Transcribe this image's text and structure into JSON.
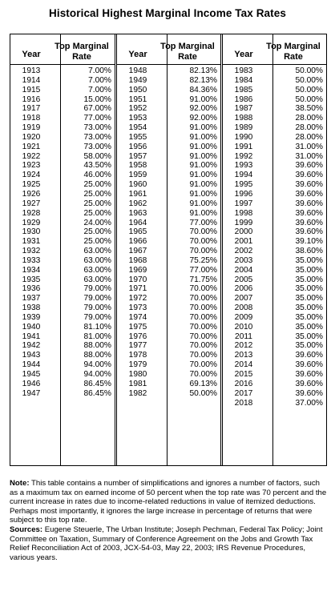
{
  "title": "Historical Highest Marginal Income Tax Rates",
  "table": {
    "col_year": "Year",
    "col_rate": "Top Marginal Rate",
    "panels": [
      {
        "rows": [
          [
            "1913",
            "7.00%"
          ],
          [
            "1914",
            "7.00%"
          ],
          [
            "1915",
            "7.00%"
          ],
          [
            "1916",
            "15.00%"
          ],
          [
            "1917",
            "67.00%"
          ],
          [
            "1918",
            "77.00%"
          ],
          [
            "1919",
            "73.00%"
          ],
          [
            "1920",
            "73.00%"
          ],
          [
            "1921",
            "73.00%"
          ],
          [
            "1922",
            "58.00%"
          ],
          [
            "1923",
            "43.50%"
          ],
          [
            "1924",
            "46.00%"
          ],
          [
            "1925",
            "25.00%"
          ],
          [
            "1926",
            "25.00%"
          ],
          [
            "1927",
            "25.00%"
          ],
          [
            "1928",
            "25.00%"
          ],
          [
            "1929",
            "24.00%"
          ],
          [
            "1930",
            "25.00%"
          ],
          [
            "1931",
            "25.00%"
          ],
          [
            "1932",
            "63.00%"
          ],
          [
            "1933",
            "63.00%"
          ],
          [
            "1934",
            "63.00%"
          ],
          [
            "1935",
            "63.00%"
          ],
          [
            "1936",
            "79.00%"
          ],
          [
            "1937",
            "79.00%"
          ],
          [
            "1938",
            "79.00%"
          ],
          [
            "1939",
            "79.00%"
          ],
          [
            "1940",
            "81.10%"
          ],
          [
            "1941",
            "81.00%"
          ],
          [
            "1942",
            "88.00%"
          ],
          [
            "1943",
            "88.00%"
          ],
          [
            "1944",
            "94.00%"
          ],
          [
            "1945",
            "94.00%"
          ],
          [
            "1946",
            "86.45%"
          ],
          [
            "1947",
            "86.45%"
          ]
        ]
      },
      {
        "rows": [
          [
            "1948",
            "82.13%"
          ],
          [
            "1949",
            "82.13%"
          ],
          [
            "1950",
            "84.36%"
          ],
          [
            "1951",
            "91.00%"
          ],
          [
            "1952",
            "92.00%"
          ],
          [
            "1953",
            "92.00%"
          ],
          [
            "1954",
            "91.00%"
          ],
          [
            "1955",
            "91.00%"
          ],
          [
            "1956",
            "91.00%"
          ],
          [
            "1957",
            "91.00%"
          ],
          [
            "1958",
            "91.00%"
          ],
          [
            "1959",
            "91.00%"
          ],
          [
            "1960",
            "91.00%"
          ],
          [
            "1961",
            "91.00%"
          ],
          [
            "1962",
            "91.00%"
          ],
          [
            "1963",
            "91.00%"
          ],
          [
            "1964",
            "77.00%"
          ],
          [
            "1965",
            "70.00%"
          ],
          [
            "1966",
            "70.00%"
          ],
          [
            "1967",
            "70.00%"
          ],
          [
            "1968",
            "75.25%"
          ],
          [
            "1969",
            "77.00%"
          ],
          [
            "1970",
            "71.75%"
          ],
          [
            "1971",
            "70.00%"
          ],
          [
            "1972",
            "70.00%"
          ],
          [
            "1973",
            "70.00%"
          ],
          [
            "1974",
            "70.00%"
          ],
          [
            "1975",
            "70.00%"
          ],
          [
            "1976",
            "70.00%"
          ],
          [
            "1977",
            "70.00%"
          ],
          [
            "1978",
            "70.00%"
          ],
          [
            "1979",
            "70.00%"
          ],
          [
            "1980",
            "70.00%"
          ],
          [
            "1981",
            "69.13%"
          ],
          [
            "1982",
            "50.00%"
          ]
        ]
      },
      {
        "rows": [
          [
            "1983",
            "50.00%"
          ],
          [
            "1984",
            "50.00%"
          ],
          [
            "1985",
            "50.00%"
          ],
          [
            "1986",
            "50.00%"
          ],
          [
            "1987",
            "38.50%"
          ],
          [
            "1988",
            "28.00%"
          ],
          [
            "1989",
            "28.00%"
          ],
          [
            "1990",
            "28.00%"
          ],
          [
            "1991",
            "31.00%"
          ],
          [
            "1992",
            "31.00%"
          ],
          [
            "1993",
            "39.60%"
          ],
          [
            "1994",
            "39.60%"
          ],
          [
            "1995",
            "39.60%"
          ],
          [
            "1996",
            "39.60%"
          ],
          [
            "1997",
            "39.60%"
          ],
          [
            "1998",
            "39.60%"
          ],
          [
            "1999",
            "39.60%"
          ],
          [
            "2000",
            "39.60%"
          ],
          [
            "2001",
            "39.10%"
          ],
          [
            "2002",
            "38.60%"
          ],
          [
            "2003",
            "35.00%"
          ],
          [
            "2004",
            "35.00%"
          ],
          [
            "2005",
            "35.00%"
          ],
          [
            "2006",
            "35.00%"
          ],
          [
            "2007",
            "35.00%"
          ],
          [
            "2008",
            "35.00%"
          ],
          [
            "2009",
            "35.00%"
          ],
          [
            "2010",
            "35.00%"
          ],
          [
            "2011",
            "35.00%"
          ],
          [
            "2012",
            "35.00%"
          ],
          [
            "2013",
            "39.60%"
          ],
          [
            "2014",
            "39.60%"
          ],
          [
            "2015",
            "39.60%"
          ],
          [
            "2016",
            "39.60%"
          ],
          [
            "2017",
            "39.60%"
          ],
          [
            "2018",
            "37.00%"
          ]
        ]
      }
    ]
  },
  "note": {
    "label": "Note:",
    "text": " This table contains a number of simplifications and ignores a number of factors, such as a maximum tax on earned income of 50 percent when the top rate was 70 percent and the current increase in rates due to income-related reductions in value of itemized deductions.  Perhaps most importantly, it ignores the large increase in percentage of returns that were subject to this top rate."
  },
  "sources": {
    "label": "Sources:",
    "text": " Eugene Steuerle, The Urban Institute; Joseph Pechman, Federal Tax Policy; Joint Committee on Taxation, Summary of Conference Agreement on the Jobs and Growth Tax Relief Reconciliation Act of 2003, JCX-54-03, May 22, 2003; IRS Revenue Procedures, various years."
  }
}
